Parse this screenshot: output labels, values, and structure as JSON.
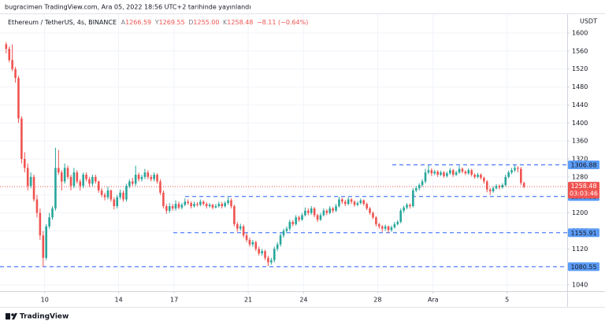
{
  "header": {
    "title": "bugracimen TradingView.com, Ara 05, 2022 18:56 UTC+2 tarihinde yayınlandı"
  },
  "chart_data": {
    "type": "candlestick",
    "symbol": "Ethereum / TetherUS, 4s, BINANCE",
    "legend_ohlc": {
      "labels": [
        "A",
        "Y",
        "D",
        "K"
      ],
      "values": [
        "1266.59",
        "1269.55",
        "1255.00",
        "1258.48"
      ]
    },
    "change": "−8.11 (−0.64%)",
    "y_axis_unit": "USDT",
    "up_color": "#26a69a",
    "down_color": "#ef5350",
    "level_color": "#2962ff",
    "grid": true,
    "countdown": "03:03:46",
    "xlim": [
      -2,
      182
    ],
    "xticks": [
      {
        "value": 12.5,
        "label": "10"
      },
      {
        "value": 36.5,
        "label": "14"
      },
      {
        "value": 54.5,
        "label": "17"
      },
      {
        "value": 78.5,
        "label": "21"
      },
      {
        "value": 96.5,
        "label": "24"
      },
      {
        "value": 120.5,
        "label": "28"
      },
      {
        "value": 138.5,
        "label": "Ara"
      },
      {
        "value": 162.5,
        "label": "5"
      }
    ],
    "ylim": [
      1026,
      1642
    ],
    "yticks": [
      1040,
      1080,
      1120,
      1160,
      1200,
      1240,
      1280,
      1320,
      1360,
      1400,
      1440,
      1480,
      1520,
      1560,
      1600
    ],
    "levels": [
      1306.88,
      1236.52,
      1155.91,
      1080.55
    ],
    "ohlc": [
      [
        1575,
        1580,
        1555,
        1565
      ],
      [
        1565,
        1570,
        1535,
        1540
      ],
      [
        1540,
        1575,
        1515,
        1520
      ],
      [
        1520,
        1525,
        1490,
        1500
      ],
      [
        1500,
        1505,
        1400,
        1410
      ],
      [
        1410,
        1415,
        1310,
        1320
      ],
      [
        1320,
        1335,
        1290,
        1300
      ],
      [
        1300,
        1310,
        1250,
        1260
      ],
      [
        1260,
        1290,
        1255,
        1280
      ],
      [
        1280,
        1285,
        1225,
        1230
      ],
      [
        1230,
        1240,
        1190,
        1200
      ],
      [
        1200,
        1210,
        1140,
        1150
      ],
      [
        1150,
        1160,
        1080,
        1100
      ],
      [
        1100,
        1175,
        1095,
        1170
      ],
      [
        1170,
        1200,
        1165,
        1190
      ],
      [
        1190,
        1215,
        1185,
        1210
      ],
      [
        1210,
        1345,
        1205,
        1300
      ],
      [
        1300,
        1340,
        1285,
        1290
      ],
      [
        1290,
        1295,
        1250,
        1270
      ],
      [
        1270,
        1310,
        1265,
        1300
      ],
      [
        1300,
        1305,
        1275,
        1280
      ],
      [
        1280,
        1285,
        1250,
        1260
      ],
      [
        1260,
        1300,
        1255,
        1290
      ],
      [
        1290,
        1295,
        1265,
        1270
      ],
      [
        1270,
        1275,
        1250,
        1260
      ],
      [
        1260,
        1290,
        1255,
        1285
      ],
      [
        1285,
        1290,
        1270,
        1275
      ],
      [
        1275,
        1280,
        1258,
        1265
      ],
      [
        1265,
        1285,
        1260,
        1280
      ],
      [
        1280,
        1285,
        1265,
        1270
      ],
      [
        1270,
        1272,
        1245,
        1250
      ],
      [
        1250,
        1255,
        1235,
        1240
      ],
      [
        1240,
        1245,
        1228,
        1235
      ],
      [
        1235,
        1258,
        1230,
        1250
      ],
      [
        1250,
        1252,
        1225,
        1230
      ],
      [
        1230,
        1235,
        1208,
        1215
      ],
      [
        1215,
        1240,
        1210,
        1235
      ],
      [
        1235,
        1252,
        1230,
        1245
      ],
      [
        1245,
        1250,
        1225,
        1230
      ],
      [
        1230,
        1265,
        1225,
        1260
      ],
      [
        1260,
        1275,
        1255,
        1270
      ],
      [
        1270,
        1278,
        1260,
        1265
      ],
      [
        1265,
        1305,
        1260,
        1285
      ],
      [
        1285,
        1290,
        1270,
        1275
      ],
      [
        1275,
        1285,
        1270,
        1280
      ],
      [
        1280,
        1298,
        1275,
        1290
      ],
      [
        1290,
        1295,
        1275,
        1280
      ],
      [
        1280,
        1285,
        1270,
        1275
      ],
      [
        1275,
        1290,
        1270,
        1285
      ],
      [
        1285,
        1288,
        1265,
        1270
      ],
      [
        1270,
        1275,
        1240,
        1245
      ],
      [
        1245,
        1250,
        1210,
        1215
      ],
      [
        1215,
        1220,
        1198,
        1205
      ],
      [
        1205,
        1222,
        1200,
        1215
      ],
      [
        1215,
        1220,
        1205,
        1210
      ],
      [
        1210,
        1228,
        1205,
        1220
      ],
      [
        1220,
        1225,
        1208,
        1212
      ],
      [
        1212,
        1222,
        1208,
        1218
      ],
      [
        1218,
        1232,
        1215,
        1225
      ],
      [
        1225,
        1230,
        1218,
        1222
      ],
      [
        1222,
        1226,
        1210,
        1215
      ],
      [
        1215,
        1225,
        1212,
        1220
      ],
      [
        1220,
        1224,
        1214,
        1218
      ],
      [
        1218,
        1230,
        1215,
        1225
      ],
      [
        1225,
        1228,
        1216,
        1220
      ],
      [
        1220,
        1224,
        1210,
        1215
      ],
      [
        1215,
        1222,
        1212,
        1218
      ],
      [
        1218,
        1220,
        1208,
        1212
      ],
      [
        1212,
        1220,
        1210,
        1215
      ],
      [
        1215,
        1225,
        1212,
        1220
      ],
      [
        1220,
        1224,
        1210,
        1215
      ],
      [
        1215,
        1226,
        1212,
        1222
      ],
      [
        1222,
        1235,
        1218,
        1228
      ],
      [
        1228,
        1232,
        1210,
        1215
      ],
      [
        1215,
        1218,
        1170,
        1175
      ],
      [
        1175,
        1180,
        1158,
        1165
      ],
      [
        1165,
        1176,
        1160,
        1170
      ],
      [
        1170,
        1174,
        1145,
        1150
      ],
      [
        1150,
        1155,
        1135,
        1140
      ],
      [
        1140,
        1145,
        1125,
        1130
      ],
      [
        1130,
        1140,
        1125,
        1135
      ],
      [
        1135,
        1138,
        1115,
        1120
      ],
      [
        1120,
        1125,
        1105,
        1110
      ],
      [
        1110,
        1120,
        1105,
        1115
      ],
      [
        1115,
        1118,
        1095,
        1100
      ],
      [
        1100,
        1105,
        1082,
        1090
      ],
      [
        1090,
        1100,
        1085,
        1095
      ],
      [
        1095,
        1125,
        1090,
        1120
      ],
      [
        1120,
        1135,
        1115,
        1130
      ],
      [
        1130,
        1155,
        1125,
        1150
      ],
      [
        1150,
        1165,
        1145,
        1160
      ],
      [
        1160,
        1170,
        1155,
        1165
      ],
      [
        1165,
        1185,
        1160,
        1180
      ],
      [
        1180,
        1184,
        1170,
        1175
      ],
      [
        1175,
        1195,
        1172,
        1190
      ],
      [
        1190,
        1194,
        1180,
        1185
      ],
      [
        1185,
        1200,
        1182,
        1195
      ],
      [
        1195,
        1212,
        1192,
        1205
      ],
      [
        1205,
        1210,
        1195,
        1200
      ],
      [
        1200,
        1215,
        1196,
        1210
      ],
      [
        1210,
        1213,
        1190,
        1195
      ],
      [
        1195,
        1198,
        1180,
        1185
      ],
      [
        1185,
        1200,
        1182,
        1195
      ],
      [
        1195,
        1210,
        1192,
        1205
      ],
      [
        1205,
        1208,
        1195,
        1200
      ],
      [
        1200,
        1215,
        1197,
        1210
      ],
      [
        1210,
        1213,
        1200,
        1205
      ],
      [
        1205,
        1220,
        1202,
        1215
      ],
      [
        1215,
        1236,
        1212,
        1230
      ],
      [
        1230,
        1234,
        1220,
        1225
      ],
      [
        1225,
        1229,
        1215,
        1220
      ],
      [
        1220,
        1235,
        1217,
        1230
      ],
      [
        1230,
        1233,
        1220,
        1225
      ],
      [
        1225,
        1228,
        1214,
        1218
      ],
      [
        1218,
        1226,
        1215,
        1222
      ],
      [
        1222,
        1232,
        1219,
        1228
      ],
      [
        1228,
        1230,
        1216,
        1220
      ],
      [
        1220,
        1223,
        1206,
        1210
      ],
      [
        1210,
        1213,
        1196,
        1200
      ],
      [
        1200,
        1203,
        1186,
        1190
      ],
      [
        1190,
        1193,
        1170,
        1175
      ],
      [
        1175,
        1178,
        1165,
        1170
      ],
      [
        1170,
        1173,
        1158,
        1165
      ],
      [
        1165,
        1174,
        1160,
        1170
      ],
      [
        1170,
        1172,
        1155,
        1162
      ],
      [
        1162,
        1172,
        1158,
        1168
      ],
      [
        1168,
        1180,
        1165,
        1175
      ],
      [
        1175,
        1184,
        1172,
        1180
      ],
      [
        1180,
        1210,
        1177,
        1205
      ],
      [
        1205,
        1216,
        1200,
        1212
      ],
      [
        1212,
        1222,
        1208,
        1218
      ],
      [
        1218,
        1221,
        1210,
        1215
      ],
      [
        1215,
        1255,
        1212,
        1250
      ],
      [
        1250,
        1260,
        1246,
        1255
      ],
      [
        1255,
        1266,
        1250,
        1262
      ],
      [
        1262,
        1275,
        1258,
        1270
      ],
      [
        1270,
        1298,
        1266,
        1290
      ],
      [
        1290,
        1306,
        1286,
        1295
      ],
      [
        1295,
        1299,
        1282,
        1288
      ],
      [
        1288,
        1296,
        1284,
        1292
      ],
      [
        1292,
        1295,
        1280,
        1285
      ],
      [
        1285,
        1294,
        1282,
        1290
      ],
      [
        1290,
        1293,
        1278,
        1282
      ],
      [
        1282,
        1292,
        1279,
        1288
      ],
      [
        1288,
        1300,
        1285,
        1295
      ],
      [
        1295,
        1298,
        1280,
        1285
      ],
      [
        1285,
        1294,
        1282,
        1290
      ],
      [
        1290,
        1305,
        1287,
        1298
      ],
      [
        1298,
        1301,
        1288,
        1292
      ],
      [
        1292,
        1295,
        1284,
        1288
      ],
      [
        1288,
        1299,
        1285,
        1295
      ],
      [
        1295,
        1298,
        1281,
        1285
      ],
      [
        1285,
        1288,
        1276,
        1280
      ],
      [
        1280,
        1289,
        1277,
        1285
      ],
      [
        1285,
        1288,
        1274,
        1278
      ],
      [
        1278,
        1281,
        1265,
        1270
      ],
      [
        1270,
        1273,
        1246,
        1252
      ],
      [
        1252,
        1256,
        1240,
        1248
      ],
      [
        1248,
        1259,
        1245,
        1255
      ],
      [
        1255,
        1264,
        1252,
        1260
      ],
      [
        1260,
        1263,
        1252,
        1257
      ],
      [
        1257,
        1266,
        1254,
        1262
      ],
      [
        1262,
        1285,
        1259,
        1280
      ],
      [
        1280,
        1294,
        1277,
        1290
      ],
      [
        1290,
        1300,
        1286,
        1295
      ],
      [
        1295,
        1306,
        1291,
        1300
      ],
      [
        1300,
        1304,
        1290,
        1298
      ],
      [
        1298,
        1302,
        1262,
        1266.59
      ],
      [
        1266.59,
        1269.55,
        1255,
        1258.48
      ]
    ]
  },
  "footer": {
    "brand": "TradingView"
  }
}
